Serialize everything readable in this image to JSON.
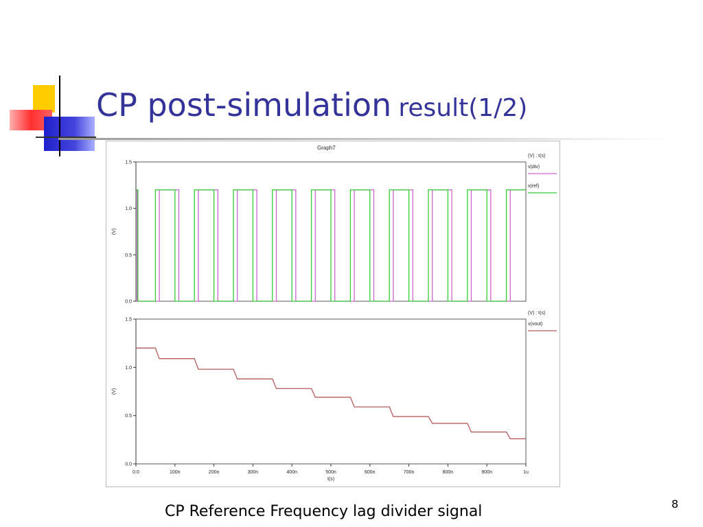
{
  "slide": {
    "title_main": "CP post-simulation",
    "title_suffix": "result(1/2)",
    "caption": "CP  Reference Frequency lag divider signal",
    "page_number": "8"
  },
  "colors": {
    "title": "#333399",
    "div": "#cc66cc",
    "ref": "#33cc33",
    "vout": "#b55a5a"
  },
  "chart_data": [
    {
      "type": "line",
      "title": "Graph7",
      "ylabel": "(V)",
      "xlabel": "",
      "ylim": [
        0,
        1.5
      ],
      "xlim": [
        0,
        1000
      ],
      "yticks": [
        "0.0",
        "0.5",
        "1.0",
        "1.5"
      ],
      "ytick_values": [
        0,
        0.5,
        1.0,
        1.5
      ],
      "legend_header": "(V) : t(s)",
      "legend_position": "right",
      "series": [
        {
          "name": "v(div)",
          "color": "#cc66cc",
          "points": [
            [
              0,
              0
            ],
            [
              3,
              0
            ],
            [
              3,
              1.2
            ],
            [
              5,
              1.2
            ],
            [
              5,
              0
            ],
            [
              60,
              0
            ],
            [
              60,
              1.2
            ],
            [
              110,
              1.2
            ],
            [
              110,
              0
            ],
            [
              160,
              0
            ],
            [
              160,
              1.2
            ],
            [
              210,
              1.2
            ],
            [
              210,
              0
            ],
            [
              260,
              0
            ],
            [
              260,
              1.2
            ],
            [
              310,
              1.2
            ],
            [
              310,
              0
            ],
            [
              360,
              0
            ],
            [
              360,
              1.2
            ],
            [
              410,
              1.2
            ],
            [
              410,
              0
            ],
            [
              460,
              0
            ],
            [
              460,
              1.2
            ],
            [
              510,
              1.2
            ],
            [
              510,
              0
            ],
            [
              560,
              0
            ],
            [
              560,
              1.2
            ],
            [
              610,
              1.2
            ],
            [
              610,
              0
            ],
            [
              660,
              0
            ],
            [
              660,
              1.2
            ],
            [
              710,
              1.2
            ],
            [
              710,
              0
            ],
            [
              760,
              0
            ],
            [
              760,
              1.2
            ],
            [
              810,
              1.2
            ],
            [
              810,
              0
            ],
            [
              860,
              0
            ],
            [
              860,
              1.2
            ],
            [
              910,
              1.2
            ],
            [
              910,
              0
            ],
            [
              960,
              0
            ],
            [
              960,
              1.2
            ],
            [
              1000,
              1.2
            ]
          ]
        },
        {
          "name": "v(ref)",
          "color": "#33cc33",
          "points": [
            [
              0,
              1.2
            ],
            [
              5,
              1.2
            ],
            [
              5,
              0
            ],
            [
              50,
              0
            ],
            [
              50,
              1.2
            ],
            [
              100,
              1.2
            ],
            [
              100,
              0
            ],
            [
              150,
              0
            ],
            [
              150,
              1.2
            ],
            [
              200,
              1.2
            ],
            [
              200,
              0
            ],
            [
              250,
              0
            ],
            [
              250,
              1.2
            ],
            [
              300,
              1.2
            ],
            [
              300,
              0
            ],
            [
              350,
              0
            ],
            [
              350,
              1.2
            ],
            [
              400,
              1.2
            ],
            [
              400,
              0
            ],
            [
              450,
              0
            ],
            [
              450,
              1.2
            ],
            [
              500,
              1.2
            ],
            [
              500,
              0
            ],
            [
              550,
              0
            ],
            [
              550,
              1.2
            ],
            [
              600,
              1.2
            ],
            [
              600,
              0
            ],
            [
              650,
              0
            ],
            [
              650,
              1.2
            ],
            [
              700,
              1.2
            ],
            [
              700,
              0
            ],
            [
              750,
              0
            ],
            [
              750,
              1.2
            ],
            [
              800,
              1.2
            ],
            [
              800,
              0
            ],
            [
              850,
              0
            ],
            [
              850,
              1.2
            ],
            [
              900,
              1.2
            ],
            [
              900,
              0
            ],
            [
              950,
              0
            ],
            [
              950,
              1.2
            ],
            [
              1000,
              1.2
            ]
          ]
        }
      ]
    },
    {
      "type": "line",
      "title": "",
      "ylabel": "(V)",
      "xlabel": "t(s)",
      "ylim": [
        0,
        1.5
      ],
      "xlim": [
        0,
        1000
      ],
      "yticks": [
        "0.0",
        "0.5",
        "1.0",
        "1.5"
      ],
      "ytick_values": [
        0,
        0.5,
        1.0,
        1.5
      ],
      "xticks": [
        "0.0",
        "100n",
        "200n",
        "300n",
        "400n",
        "500n",
        "600n",
        "700n",
        "800n",
        "900n",
        "1u"
      ],
      "xtick_values": [
        0,
        100,
        200,
        300,
        400,
        500,
        600,
        700,
        800,
        900,
        1000
      ],
      "legend_header": "(V) : t(s)",
      "legend_position": "right",
      "series": [
        {
          "name": "v(vout)",
          "color": "#b55a5a",
          "points": [
            [
              0,
              1.2
            ],
            [
              50,
              1.2
            ],
            [
              60,
              1.09
            ],
            [
              150,
              1.09
            ],
            [
              160,
              0.98
            ],
            [
              250,
              0.98
            ],
            [
              260,
              0.88
            ],
            [
              350,
              0.88
            ],
            [
              360,
              0.78
            ],
            [
              450,
              0.78
            ],
            [
              460,
              0.69
            ],
            [
              550,
              0.69
            ],
            [
              560,
              0.59
            ],
            [
              650,
              0.59
            ],
            [
              660,
              0.49
            ],
            [
              750,
              0.49
            ],
            [
              760,
              0.42
            ],
            [
              850,
              0.42
            ],
            [
              860,
              0.33
            ],
            [
              950,
              0.33
            ],
            [
              960,
              0.26
            ],
            [
              1000,
              0.26
            ]
          ]
        }
      ]
    }
  ]
}
